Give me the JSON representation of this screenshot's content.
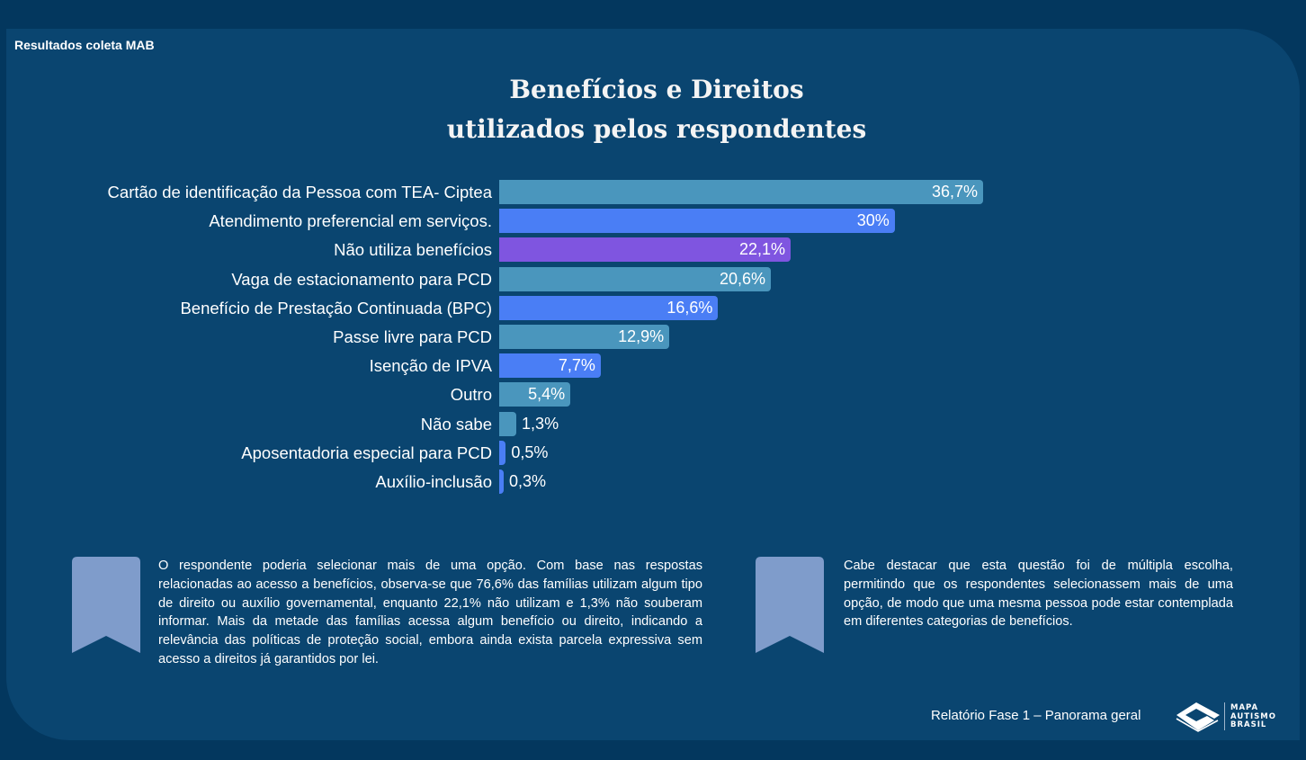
{
  "header": {
    "section_label": "Resultados coleta MAB"
  },
  "chart_data": {
    "type": "bar",
    "orientation": "horizontal",
    "title_lines": [
      "Benefícios e Direitos",
      "utilizados pelos respondentes"
    ],
    "xlabel": "",
    "ylabel": "",
    "unit": "%",
    "xlim": [
      0,
      36.7
    ],
    "grid": false,
    "categories": [
      "Cartão de identificação da Pessoa com TEA- Ciptea",
      "Atendimento preferencial em serviços.",
      "Não utiliza benefícios",
      "Vaga de estacionamento para PCD",
      "Benefício de Prestação Continuada (BPC)",
      "Passe livre para PCD",
      "Isenção de IPVA",
      "Outro",
      "Não sabe",
      "Aposentadoria especial para PCD",
      "Auxílio-inclusão"
    ],
    "values": [
      36.7,
      30,
      22.1,
      20.6,
      16.6,
      12.9,
      7.7,
      5.4,
      1.3,
      0.5,
      0.3
    ],
    "value_labels": [
      "36,7%",
      "30%",
      "22,1%",
      "20,6%",
      "16,6%",
      "12,9%",
      "7,7%",
      "5,4%",
      "1,3%",
      "0,5%",
      "0,3%"
    ],
    "colors": [
      "#4a96bd",
      "#4a7ef5",
      "#7f55e0",
      "#4a96bd",
      "#4a7ef5",
      "#4a96bd",
      "#4a7ef5",
      "#4a96bd",
      "#4a96bd",
      "#4a7ef5",
      "#4a7ef5"
    ]
  },
  "notes": [
    {
      "icon": "bookmark-icon",
      "text": "O respondente poderia selecionar mais de uma opção. Com base nas respostas relacionadas ao acesso a benefícios, observa-se que 76,6% das famílias utilizam algum tipo de direito ou auxílio governamental, enquanto 22,1% não utilizam e 1,3% não souberam informar. Mais da metade das famílias acessa algum benefício ou direito, indicando a relevância das políticas de proteção social, embora ainda exista parcela expressiva sem acesso a direitos já garantidos por lei."
    },
    {
      "icon": "bookmark-icon",
      "text": "Cabe destacar que esta questão foi de múltipla escolha, permitindo que os respondentes selecionassem mais de uma opção, de modo que uma mesma pessoa pode estar contemplada em diferentes categorias de benefícios."
    }
  ],
  "footer": {
    "report_label": "Relatório Fase 1 – Panorama geral",
    "logo_lines": [
      "MAPA",
      "AUTISMO",
      "BRASIL"
    ]
  },
  "colors": {
    "background": "#03375e",
    "panel": "#0a4570",
    "bookmark": "#7f9ccb"
  }
}
